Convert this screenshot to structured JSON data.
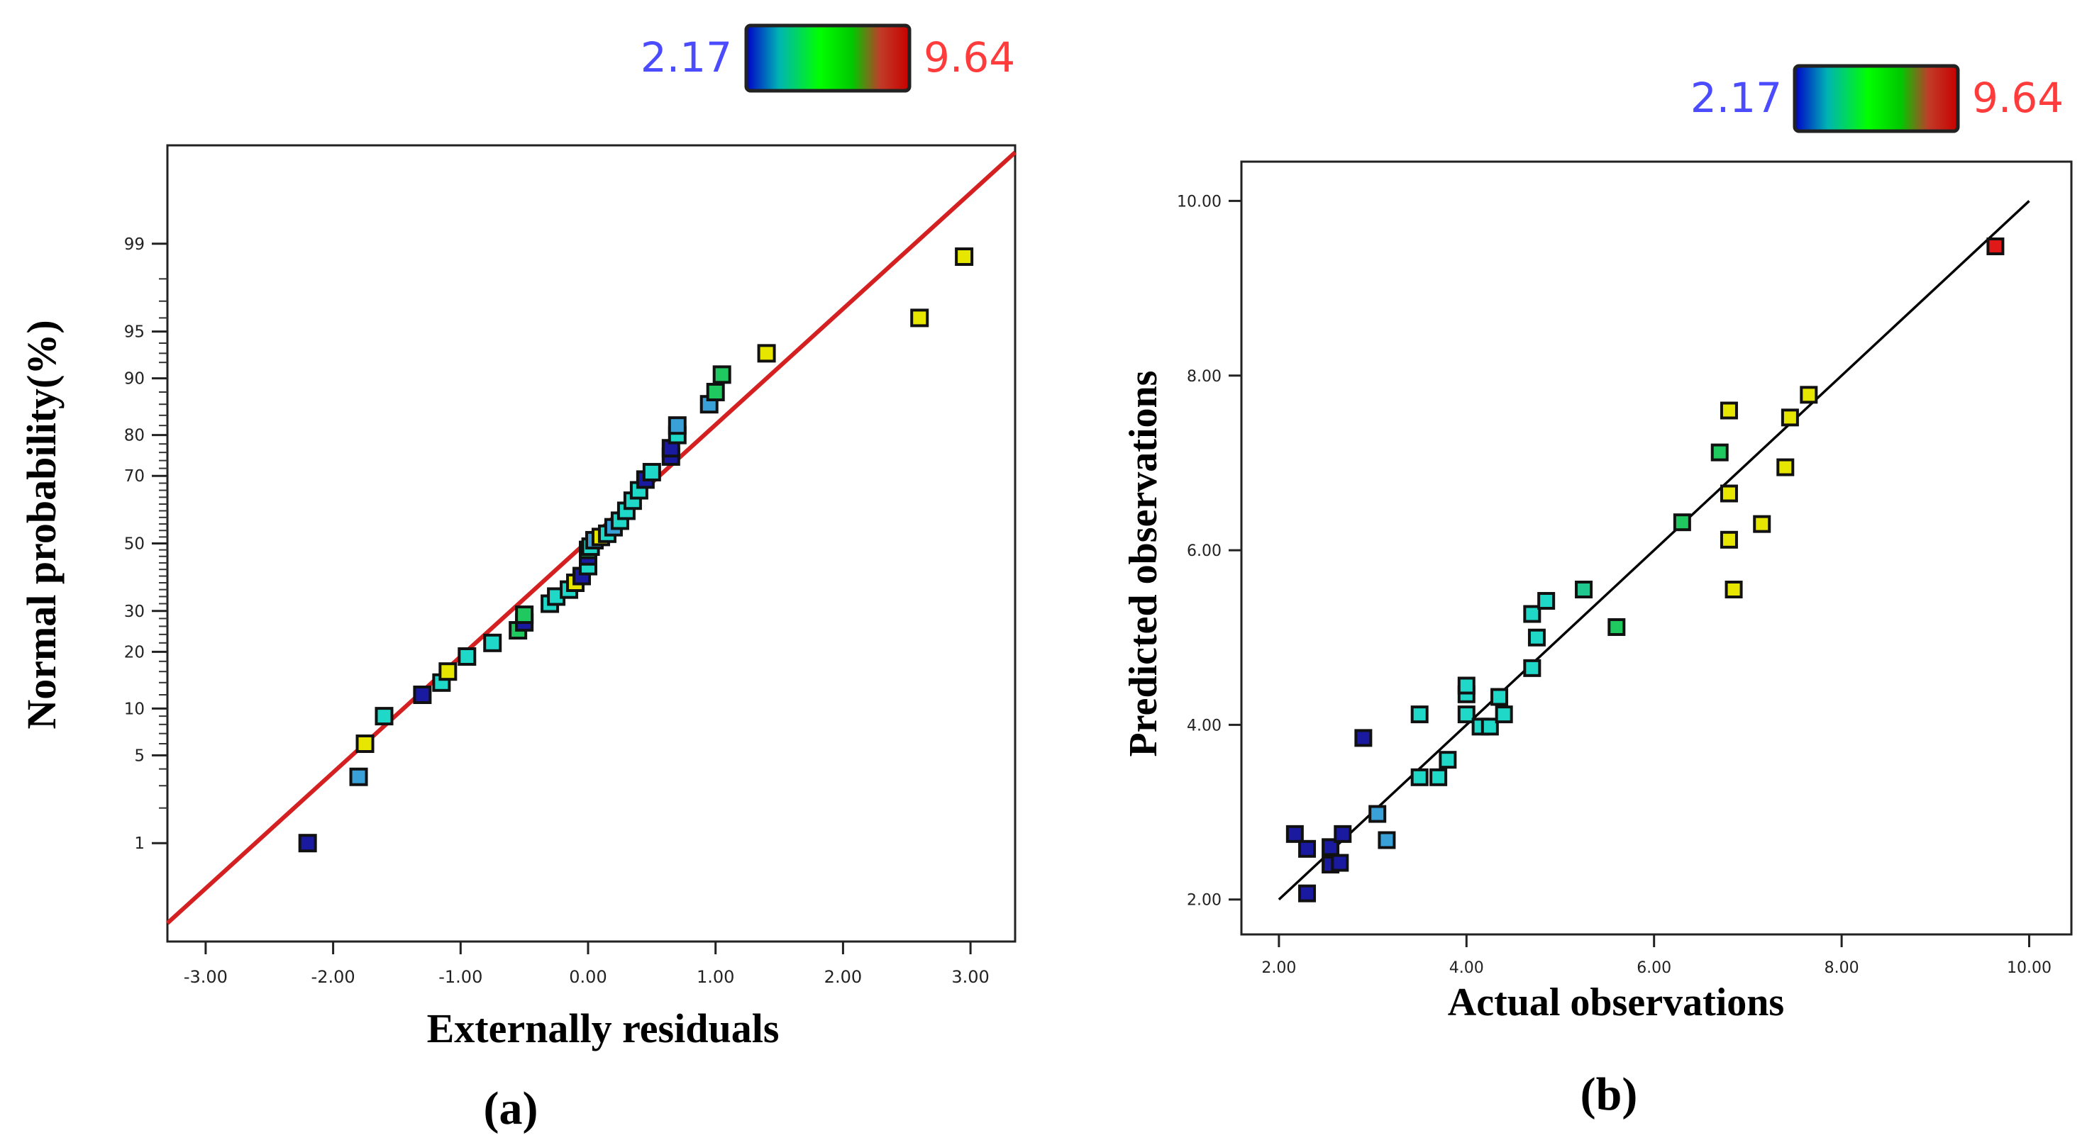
{
  "colorbar": {
    "min_label": "2.17",
    "max_label": "9.64",
    "min": 2.17,
    "max": 9.64,
    "min_color": "#4b4bff",
    "max_color": "#ff3b3b",
    "stops": [
      "#0000c8",
      "#00b4b4",
      "#00ff00",
      "#00c800",
      "#c03c28",
      "#c80000"
    ]
  },
  "chart_data": [
    {
      "type": "scatter",
      "subtitle": "(a)",
      "title": "",
      "xlabel": "Externally residuals",
      "ylabel": "Normal probability(%)",
      "xlim": [
        -3.3,
        3.35
      ],
      "x_ticks": [
        -3,
        -2,
        -1,
        0,
        1,
        2,
        3
      ],
      "x_tick_labels": [
        "-3.00",
        "-2.00",
        "-1.00",
        "0.00",
        "1.00",
        "2.00",
        "3.00"
      ],
      "y_scale": "normal-probability",
      "ylim": [
        0.1,
        99.9
      ],
      "y_ticks": [
        1,
        5,
        10,
        20,
        30,
        50,
        70,
        80,
        90,
        95,
        99
      ],
      "y_tick_labels": [
        "1",
        "5",
        "10",
        "20",
        "30",
        "50",
        "70",
        "80",
        "90",
        "95",
        "99"
      ],
      "reference_line": {
        "color": "#d42020",
        "points": [
          [
            -3.3,
            0.16
          ],
          [
            3.35,
            99.88
          ]
        ]
      },
      "points": [
        {
          "x": -2.2,
          "y": 1.0,
          "c": "#1a1aa0"
        },
        {
          "x": -1.8,
          "y": 3.5,
          "c": "#3aa0d8"
        },
        {
          "x": -1.75,
          "y": 6.0,
          "c": "#e6e600"
        },
        {
          "x": -1.6,
          "y": 9.0,
          "c": "#20d8c8"
        },
        {
          "x": -1.3,
          "y": 12.0,
          "c": "#1a1aa0"
        },
        {
          "x": -1.15,
          "y": 14.0,
          "c": "#20d8c8"
        },
        {
          "x": -1.1,
          "y": 16.0,
          "c": "#e6e600"
        },
        {
          "x": -0.95,
          "y": 19.0,
          "c": "#20d8c8"
        },
        {
          "x": -0.75,
          "y": 22.0,
          "c": "#20d8c8"
        },
        {
          "x": -0.55,
          "y": 25.0,
          "c": "#20c860"
        },
        {
          "x": -0.5,
          "y": 27.0,
          "c": "#1a1aa0"
        },
        {
          "x": -0.5,
          "y": 29.0,
          "c": "#20c860"
        },
        {
          "x": -0.3,
          "y": 32.0,
          "c": "#20d8c8"
        },
        {
          "x": -0.25,
          "y": 34.0,
          "c": "#20d8c8"
        },
        {
          "x": -0.15,
          "y": 36.0,
          "c": "#20d8c8"
        },
        {
          "x": -0.1,
          "y": 38.0,
          "c": "#e6e600"
        },
        {
          "x": -0.05,
          "y": 40.0,
          "c": "#1a1aa0"
        },
        {
          "x": 0.0,
          "y": 43.0,
          "c": "#20d8c8"
        },
        {
          "x": 0.0,
          "y": 46.0,
          "c": "#1a1aa0"
        },
        {
          "x": 0.0,
          "y": 48.0,
          "c": "#20c860"
        },
        {
          "x": 0.02,
          "y": 49.0,
          "c": "#20d8c8"
        },
        {
          "x": 0.05,
          "y": 51.0,
          "c": "#3aa0d8"
        },
        {
          "x": 0.1,
          "y": 52.0,
          "c": "#e6e600"
        },
        {
          "x": 0.15,
          "y": 53.0,
          "c": "#20d8c8"
        },
        {
          "x": 0.2,
          "y": 55.0,
          "c": "#3aa0d8"
        },
        {
          "x": 0.25,
          "y": 57.0,
          "c": "#20d8c8"
        },
        {
          "x": 0.3,
          "y": 60.0,
          "c": "#20d8c8"
        },
        {
          "x": 0.35,
          "y": 63.0,
          "c": "#20d8c8"
        },
        {
          "x": 0.4,
          "y": 66.0,
          "c": "#20d8c8"
        },
        {
          "x": 0.45,
          "y": 69.0,
          "c": "#1a1aa0"
        },
        {
          "x": 0.5,
          "y": 71.0,
          "c": "#20d8c8"
        },
        {
          "x": 0.65,
          "y": 75.0,
          "c": "#1a1aa0"
        },
        {
          "x": 0.65,
          "y": 77.0,
          "c": "#1a1aa0"
        },
        {
          "x": 0.7,
          "y": 80.0,
          "c": "#20d8c8"
        },
        {
          "x": 0.7,
          "y": 82.0,
          "c": "#3aa0d8"
        },
        {
          "x": 0.95,
          "y": 86.0,
          "c": "#3aa0d8"
        },
        {
          "x": 1.0,
          "y": 88.0,
          "c": "#20c860"
        },
        {
          "x": 1.05,
          "y": 90.5,
          "c": "#20c860"
        },
        {
          "x": 1.4,
          "y": 93.0,
          "c": "#e6e600"
        },
        {
          "x": 2.6,
          "y": 96.0,
          "c": "#e6e600"
        },
        {
          "x": 2.95,
          "y": 98.7,
          "c": "#e6e600"
        }
      ]
    },
    {
      "type": "scatter",
      "subtitle": "(b)",
      "title": "",
      "xlabel": "Actual observations",
      "ylabel": "Predicted observations",
      "xlim": [
        1.6,
        10.45
      ],
      "ylim": [
        1.6,
        10.45
      ],
      "x_ticks": [
        2,
        4,
        6,
        8,
        10
      ],
      "x_tick_labels": [
        "2.00",
        "4.00",
        "6.00",
        "8.00",
        "10.00"
      ],
      "y_ticks": [
        2,
        4,
        6,
        8,
        10
      ],
      "y_tick_labels": [
        "2.00",
        "4.00",
        "6.00",
        "8.00",
        "10.00"
      ],
      "reference_line": {
        "color": "#000000",
        "points": [
          [
            2.0,
            2.0
          ],
          [
            10.0,
            10.0
          ]
        ]
      },
      "points": [
        {
          "x": 2.17,
          "y": 2.75,
          "c": "#1a1aa0"
        },
        {
          "x": 2.3,
          "y": 2.58,
          "c": "#1a1aa0"
        },
        {
          "x": 2.3,
          "y": 2.07,
          "c": "#1a1aa0"
        },
        {
          "x": 2.55,
          "y": 2.6,
          "c": "#1a1aa0"
        },
        {
          "x": 2.55,
          "y": 2.4,
          "c": "#1a1aa0"
        },
        {
          "x": 2.65,
          "y": 2.42,
          "c": "#1a1aa0"
        },
        {
          "x": 2.68,
          "y": 2.75,
          "c": "#1a1aa0"
        },
        {
          "x": 2.9,
          "y": 3.85,
          "c": "#1a1aa0"
        },
        {
          "x": 3.05,
          "y": 2.98,
          "c": "#3aa0d8"
        },
        {
          "x": 3.15,
          "y": 2.68,
          "c": "#3aa0d8"
        },
        {
          "x": 3.5,
          "y": 3.4,
          "c": "#20d8c8"
        },
        {
          "x": 3.5,
          "y": 4.12,
          "c": "#20d8c8"
        },
        {
          "x": 3.7,
          "y": 3.4,
          "c": "#20d8c8"
        },
        {
          "x": 3.8,
          "y": 3.6,
          "c": "#20d8c8"
        },
        {
          "x": 4.0,
          "y": 4.12,
          "c": "#20d8c8"
        },
        {
          "x": 4.0,
          "y": 4.35,
          "c": "#20d8c8"
        },
        {
          "x": 4.0,
          "y": 4.45,
          "c": "#20d8c8"
        },
        {
          "x": 4.15,
          "y": 3.98,
          "c": "#20d8c8"
        },
        {
          "x": 4.25,
          "y": 3.98,
          "c": "#20d8c8"
        },
        {
          "x": 4.35,
          "y": 4.32,
          "c": "#20d8c8"
        },
        {
          "x": 4.4,
          "y": 4.12,
          "c": "#20d8c8"
        },
        {
          "x": 4.7,
          "y": 4.65,
          "c": "#20d8c8"
        },
        {
          "x": 4.7,
          "y": 5.27,
          "c": "#20d8c8"
        },
        {
          "x": 4.75,
          "y": 5.0,
          "c": "#20d8c8"
        },
        {
          "x": 4.85,
          "y": 5.42,
          "c": "#20d8c8"
        },
        {
          "x": 5.25,
          "y": 5.55,
          "c": "#20c890"
        },
        {
          "x": 5.6,
          "y": 5.12,
          "c": "#20c860"
        },
        {
          "x": 6.3,
          "y": 6.32,
          "c": "#20c860"
        },
        {
          "x": 6.7,
          "y": 7.12,
          "c": "#20c860"
        },
        {
          "x": 6.8,
          "y": 7.6,
          "c": "#e6e600"
        },
        {
          "x": 6.8,
          "y": 6.65,
          "c": "#e6e600"
        },
        {
          "x": 6.8,
          "y": 6.12,
          "c": "#e6e600"
        },
        {
          "x": 6.85,
          "y": 5.55,
          "c": "#e6e600"
        },
        {
          "x": 7.15,
          "y": 6.3,
          "c": "#e6e600"
        },
        {
          "x": 7.4,
          "y": 6.95,
          "c": "#e6e600"
        },
        {
          "x": 7.45,
          "y": 7.52,
          "c": "#e6e600"
        },
        {
          "x": 7.65,
          "y": 7.78,
          "c": "#e6e600"
        },
        {
          "x": 9.64,
          "y": 9.48,
          "c": "#e01818"
        }
      ]
    }
  ]
}
